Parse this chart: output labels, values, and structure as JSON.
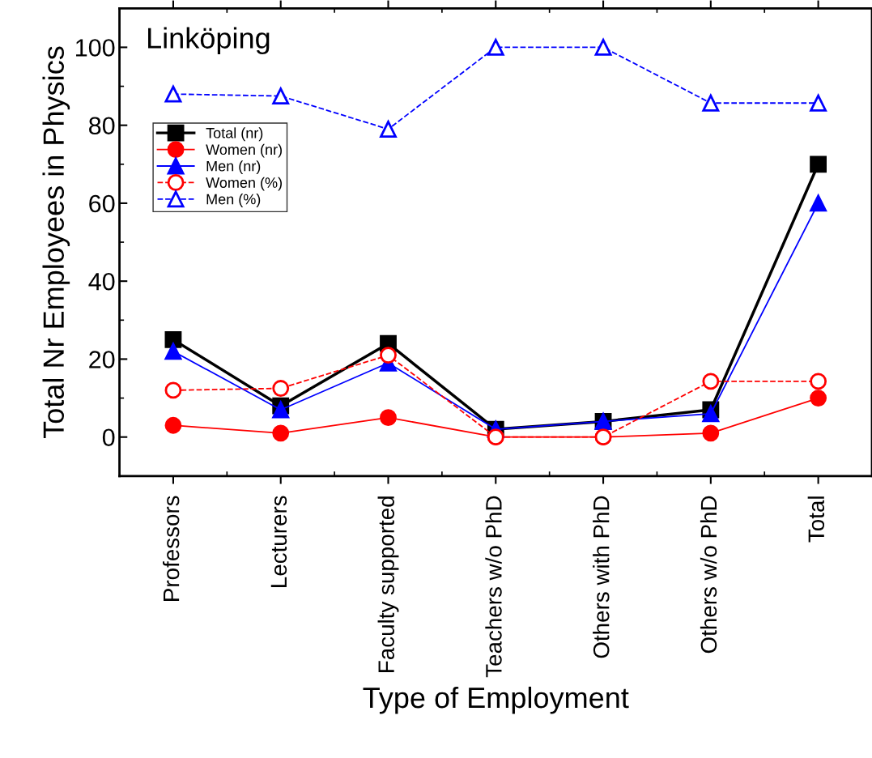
{
  "chart_data": {
    "type": "line",
    "title": "Linköping",
    "xlabel": "Type of Employment",
    "ylabel": "Total Nr Employees in Physics",
    "categories": [
      "Professors",
      "Lecturers",
      "Faculty supported",
      "Teachers w/o PhD",
      "Others with PhD",
      "Others w/o PhD",
      "Total"
    ],
    "series": [
      {
        "name": "Total (nr)",
        "color": "#000000",
        "marker": "square",
        "line_style": "solid",
        "values": [
          25,
          8,
          24,
          2,
          4,
          7,
          70
        ]
      },
      {
        "name": "Women (nr)",
        "color": "#ff0000",
        "marker": "circle",
        "line_style": "solid",
        "values": [
          3,
          1,
          5,
          0,
          0,
          1,
          10
        ]
      },
      {
        "name": "Men (nr)",
        "color": "#0000ff",
        "marker": "triangle",
        "line_style": "solid",
        "values": [
          22,
          7,
          19,
          2,
          4,
          6,
          60
        ]
      },
      {
        "name": "Women (%)",
        "color": "#ff0000",
        "marker": "circle",
        "line_style": "dashed",
        "values": [
          12,
          12.5,
          21,
          0,
          0,
          14.3,
          14.3
        ]
      },
      {
        "name": "Men (%)",
        "color": "#0000ff",
        "marker": "triangle",
        "line_style": "dashed",
        "values": [
          88,
          87.5,
          79,
          100,
          100,
          85.7,
          85.7
        ]
      }
    ],
    "ylim": [
      -10,
      110
    ],
    "yticks": [
      0,
      20,
      40,
      60,
      80,
      100
    ],
    "legend": "left",
    "grid": false
  }
}
